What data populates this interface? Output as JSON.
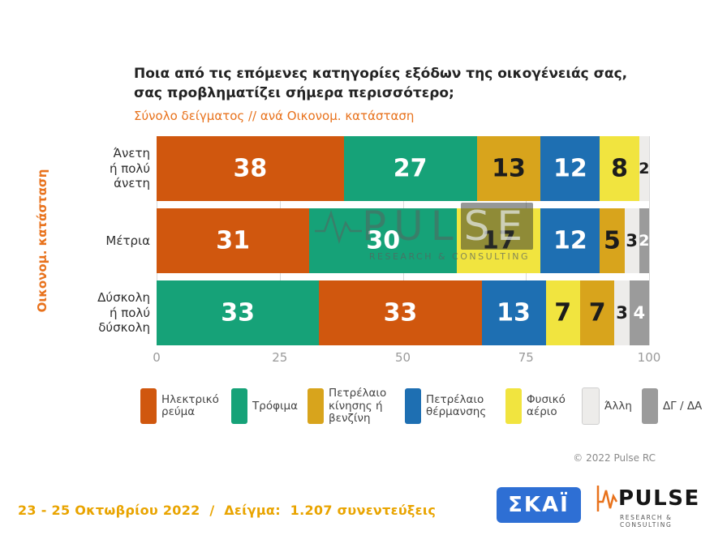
{
  "title": "Ποια από τις επόμενες κατηγορίες εξόδων της οικογένειάς σας,\nσας προβληματίζει σήμερα περισσότερο;",
  "subtitle": "Σύνολο δείγματος // ανά Οικονομ. κατάσταση",
  "y_axis_label": "Οικονομ. κατάσταση",
  "chart_data": {
    "type": "bar",
    "orientation": "horizontal_stacked",
    "xlim": [
      0,
      100
    ],
    "x_ticks": [
      0,
      25,
      50,
      75,
      100
    ],
    "grid": true,
    "legend_position": "bottom",
    "legend": [
      {
        "name": "Ηλεκτρικό ρεύμα",
        "color": "#D0570E",
        "text": "light"
      },
      {
        "name": "Τρόφιμα",
        "color": "#16A278",
        "text": "light"
      },
      {
        "name": "Πετρέλαιο κίνησης ή βενζίνη",
        "color": "#D8A41C",
        "text": "dark"
      },
      {
        "name": "Πετρέλαιο θέρμανσης",
        "color": "#1E6FB2",
        "text": "light"
      },
      {
        "name": "Φυσικό αέριο",
        "color": "#F1E43F",
        "text": "dark"
      },
      {
        "name": "Άλλη",
        "color": "#EDECEA",
        "text": "dark",
        "outlined": true
      },
      {
        "name": "ΔΓ / ΔΑ",
        "color": "#9B9B9B",
        "text": "light"
      }
    ],
    "rows": [
      {
        "label": "Άνετη\nή πολύ\nάνετη",
        "segments": [
          {
            "label": "Ηλεκτρικό ρεύμα",
            "value": 38
          },
          {
            "label": "Τρόφιμα",
            "value": 27
          },
          {
            "label": "Πετρέλαιο κίνησης ή βενζίνη",
            "value": 13
          },
          {
            "label": "Πετρέλαιο θέρμανσης",
            "value": 12
          },
          {
            "label": "Φυσικό αέριο",
            "value": 8
          },
          {
            "label": "Άλλη",
            "value": 2
          }
        ]
      },
      {
        "label": "Μέτρια",
        "segments": [
          {
            "label": "Ηλεκτρικό ρεύμα",
            "value": 31
          },
          {
            "label": "Τρόφιμα",
            "value": 30
          },
          {
            "label": "Φυσικό αέριο",
            "value": 17
          },
          {
            "label": "Πετρέλαιο θέρμανσης",
            "value": 12
          },
          {
            "label": "Πετρέλαιο κίνησης ή βενζίνη",
            "value": 5
          },
          {
            "label": "Άλλη",
            "value": 3
          },
          {
            "label": "ΔΓ / ΔΑ",
            "value": 2
          }
        ]
      },
      {
        "label": "Δύσκολη\nή πολύ\nδύσκολη",
        "segments": [
          {
            "label": "Τρόφιμα",
            "value": 33
          },
          {
            "label": "Ηλεκτρικό ρεύμα",
            "value": 33
          },
          {
            "label": "Πετρέλαιο θέρμανσης",
            "value": 13
          },
          {
            "label": "Φυσικό αέριο",
            "value": 7
          },
          {
            "label": "Πετρέλαιο κίνησης ή βενζίνη",
            "value": 7
          },
          {
            "label": "Άλλη",
            "value": 3
          },
          {
            "label": "ΔΓ / ΔΑ",
            "value": 4
          }
        ]
      }
    ]
  },
  "watermark": {
    "text_main": "PUL",
    "text_boxed": "SE",
    "subtext": "RESEARCH & CONSULTING"
  },
  "copyright": "© 2022 Pulse RC",
  "footer": "23 - 25 Οκτωβρίου 2022  /  Δείγμα:  1.207 συνεντεύξεις",
  "logos": {
    "skai": "ΣΚΑΪ",
    "pulse": "PULSE",
    "pulse_sub": "RESEARCH & CONSULTING"
  }
}
